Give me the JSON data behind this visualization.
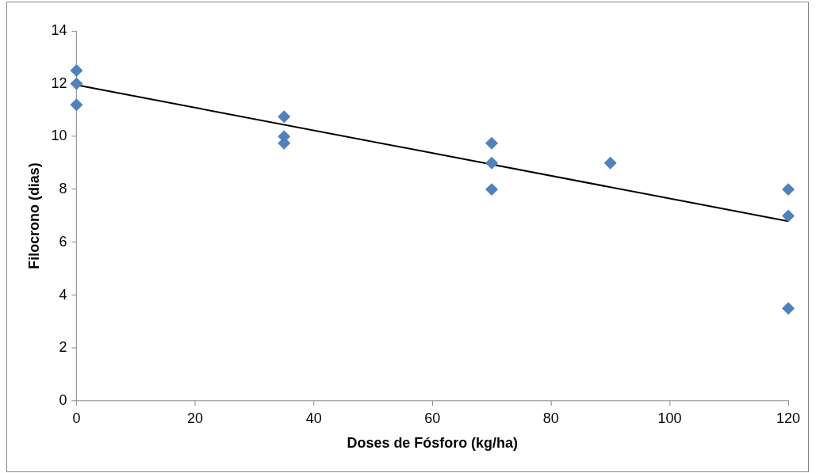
{
  "chart_data": {
    "type": "scatter",
    "xlabel": "Doses de Fósforo (kg/ha)",
    "ylabel": "Filocrono (dias)",
    "xlim": [
      0,
      120
    ],
    "xticks": [
      0,
      20,
      40,
      60,
      80,
      100,
      120
    ],
    "ylim": [
      0,
      14
    ],
    "yticks": [
      0,
      2,
      4,
      6,
      8,
      10,
      12,
      14
    ],
    "grid": false,
    "legend": false,
    "marker": "diamond",
    "series": [
      {
        "color": "#4f81bd",
        "x": [
          0,
          0,
          0,
          35,
          35,
          35,
          70,
          70,
          70,
          90,
          120,
          120,
          120
        ],
        "values": [
          12.5,
          12,
          11.2,
          10.75,
          10,
          9.75,
          9.75,
          9,
          8,
          9,
          8,
          7,
          3.5
        ]
      },
      {
        "type": "line",
        "color": "#000000",
        "marker": "none",
        "x": [
          0,
          120
        ],
        "values": [
          11.95,
          6.8
        ]
      }
    ]
  }
}
